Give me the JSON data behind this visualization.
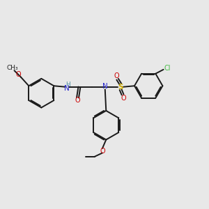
{
  "bg_color": "#e8e8e8",
  "bond_color": "#1a1a1a",
  "N_color": "#2020cc",
  "O_color": "#cc0000",
  "S_color": "#ccaa00",
  "Cl_color": "#44bb44",
  "H_color": "#5090a0",
  "bond_width": 1.4,
  "font_size": 7.0,
  "ring_r": 0.68,
  "xlim": [
    0,
    10
  ],
  "ylim": [
    0,
    10
  ]
}
